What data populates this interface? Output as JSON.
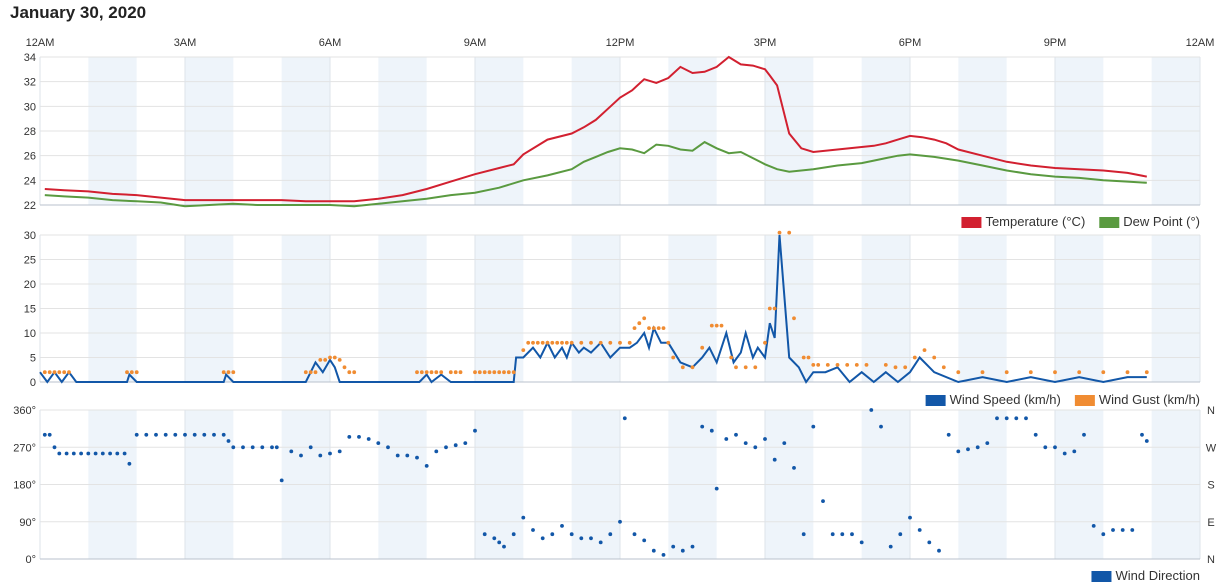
{
  "page_title": "January 30, 2020",
  "x_axis": {
    "labels": [
      "12AM",
      "3AM",
      "6AM",
      "9AM",
      "12PM",
      "3PM",
      "6PM",
      "9PM",
      "12AM"
    ],
    "range_hours": [
      0,
      24
    ]
  },
  "colors": {
    "temperature": "#d22030",
    "dew_point": "#5a9a40",
    "wind_speed": "#1257a8",
    "wind_gust": "#f08c32",
    "wind_direction": "#1257a8",
    "band": "#eef4fa",
    "grid": "#e3e3e3"
  },
  "chart_data": [
    {
      "type": "line",
      "ylim": [
        22,
        34
      ],
      "yticks": [
        22,
        24,
        26,
        28,
        30,
        32,
        34
      ],
      "grid": true,
      "legend_position": "bottom-right",
      "series": [
        {
          "name": "Temperature (°C)",
          "x": [
            0.1,
            0.5,
            1,
            1.5,
            2,
            2.5,
            3,
            3.5,
            4,
            4.5,
            5,
            5.5,
            6,
            6.5,
            7,
            7.5,
            8,
            8.5,
            9,
            9.5,
            9.8,
            10,
            10.5,
            11,
            11.25,
            11.5,
            11.75,
            12,
            12.25,
            12.5,
            12.75,
            13,
            13.25,
            13.5,
            13.75,
            14,
            14.25,
            14.5,
            14.75,
            15,
            15.1,
            15.25,
            15.5,
            15.75,
            16,
            16.5,
            17,
            17.25,
            17.5,
            17.75,
            18,
            18.25,
            18.5,
            18.75,
            19,
            19.5,
            20,
            20.5,
            21,
            21.5,
            22,
            22.5,
            22.9
          ],
          "y": [
            23.3,
            23.2,
            23.1,
            22.9,
            22.8,
            22.6,
            22.4,
            22.4,
            22.4,
            22.4,
            22.4,
            22.3,
            22.3,
            22.3,
            22.5,
            22.8,
            23.3,
            23.9,
            24.5,
            25,
            25.3,
            26.1,
            27.3,
            27.8,
            28.3,
            28.9,
            29.8,
            30.7,
            31.3,
            32.2,
            31.9,
            32.3,
            33.2,
            32.7,
            32.8,
            33.2,
            34,
            33.4,
            33.3,
            33,
            32.5,
            31.7,
            27.8,
            26.6,
            26.3,
            26.5,
            26.7,
            26.8,
            27,
            27.3,
            27.6,
            27.5,
            27.3,
            27,
            26.5,
            26,
            25.5,
            25.2,
            25,
            24.9,
            24.8,
            24.6,
            24.3
          ]
        },
        {
          "name": "Dew Point (°)",
          "x": [
            0.1,
            0.5,
            1,
            1.5,
            2,
            2.5,
            3,
            3.5,
            4,
            4.5,
            5,
            5.5,
            6,
            6.5,
            7,
            7.5,
            8,
            8.5,
            9,
            9.5,
            10,
            10.5,
            11,
            11.25,
            11.5,
            11.75,
            12,
            12.25,
            12.5,
            12.75,
            13,
            13.25,
            13.5,
            13.75,
            14,
            14.25,
            14.5,
            14.75,
            15,
            15.25,
            15.5,
            16,
            16.5,
            17,
            17.25,
            17.5,
            17.75,
            18,
            18.5,
            19,
            19.5,
            20,
            20.5,
            21,
            21.5,
            22,
            22.5,
            22.9
          ],
          "y": [
            22.8,
            22.7,
            22.6,
            22.4,
            22.3,
            22.2,
            21.9,
            22,
            22.1,
            22,
            22,
            22,
            22,
            21.9,
            22.1,
            22.3,
            22.5,
            22.8,
            23,
            23.4,
            24,
            24.4,
            24.9,
            25.5,
            25.9,
            26.3,
            26.6,
            26.5,
            26.2,
            26.9,
            26.8,
            26.5,
            26.4,
            27.1,
            26.6,
            26.2,
            26.3,
            25.8,
            25.3,
            24.9,
            24.7,
            24.9,
            25.2,
            25.4,
            25.6,
            25.8,
            26,
            26.1,
            25.9,
            25.6,
            25.2,
            24.8,
            24.5,
            24.3,
            24.2,
            24,
            23.9,
            23.8
          ]
        }
      ]
    },
    {
      "type": "line",
      "ylim": [
        0,
        30
      ],
      "yticks": [
        0,
        5,
        10,
        15,
        20,
        25,
        30
      ],
      "grid": true,
      "legend_position": "bottom-right",
      "series": [
        {
          "name": "Wind Speed (km/h)",
          "x": [
            0,
            0.15,
            0.3,
            0.45,
            0.6,
            0.75,
            1,
            1.5,
            1.8,
            1.85,
            2,
            2.5,
            3,
            3.5,
            3.8,
            3.85,
            4,
            4.5,
            5,
            5.5,
            5.7,
            5.85,
            6,
            6.1,
            6.2,
            6.35,
            6.5,
            6.7,
            7,
            7.5,
            7.85,
            8,
            8.1,
            8.3,
            8.5,
            9,
            9.5,
            9.8,
            9.85,
            10,
            10.2,
            10.35,
            10.5,
            10.65,
            10.8,
            10.9,
            11,
            11.15,
            11.25,
            11.4,
            11.6,
            11.8,
            12,
            12.2,
            12.35,
            12.5,
            12.6,
            12.7,
            12.85,
            13,
            13.25,
            13.5,
            13.7,
            13.85,
            14,
            14.2,
            14.35,
            14.5,
            14.6,
            14.75,
            14.85,
            15,
            15.1,
            15.2,
            15.3,
            15.5,
            15.7,
            15.85,
            16,
            16.25,
            16.5,
            16.75,
            17,
            17.25,
            17.5,
            17.75,
            18,
            18.2,
            18.5,
            19,
            19.5,
            20,
            20.5,
            21,
            21.5,
            22,
            22.5,
            22.9
          ],
          "y": [
            2,
            0,
            2,
            0,
            2,
            0,
            0,
            0,
            0,
            1.5,
            0,
            0,
            0,
            0,
            0,
            1.5,
            0,
            0,
            0,
            0,
            4,
            2,
            4.5,
            3,
            0,
            0,
            0,
            0,
            0,
            0,
            0,
            1.5,
            0,
            1.5,
            0,
            0,
            0,
            0,
            5,
            5,
            7,
            5,
            8,
            5,
            7,
            5,
            8,
            6,
            7,
            6,
            8,
            5,
            7,
            7,
            8,
            10,
            7,
            11,
            8,
            8,
            4,
            3,
            5,
            7,
            4,
            10,
            4,
            6,
            10,
            5,
            7,
            5,
            12,
            9,
            30,
            5,
            3,
            0,
            2,
            2,
            3,
            0,
            2,
            0,
            2,
            0,
            2,
            5,
            2,
            0,
            1,
            0,
            1,
            0,
            1,
            0,
            1,
            1
          ]
        },
        {
          "name": "Wind Gust (km/h)",
          "x": [
            0.1,
            0.2,
            0.3,
            0.4,
            0.5,
            0.6,
            1.8,
            1.9,
            2,
            3.8,
            3.9,
            4,
            5.5,
            5.6,
            5.7,
            5.8,
            5.9,
            6,
            6.1,
            6.2,
            6.3,
            6.4,
            6.5,
            7.8,
            7.9,
            8,
            8.1,
            8.2,
            8.3,
            8.5,
            8.6,
            8.7,
            9,
            9.1,
            9.2,
            9.3,
            9.4,
            9.5,
            9.6,
            9.7,
            9.8,
            10,
            10.1,
            10.2,
            10.3,
            10.4,
            10.5,
            10.6,
            10.7,
            10.8,
            10.9,
            11,
            11.2,
            11.4,
            11.6,
            11.8,
            12,
            12.2,
            12.3,
            12.4,
            12.5,
            12.6,
            12.7,
            12.8,
            12.9,
            13,
            13.1,
            13.3,
            13.5,
            13.7,
            13.9,
            14,
            14.1,
            14.3,
            14.4,
            14.6,
            14.8,
            15,
            15.1,
            15.2,
            15.3,
            15.5,
            15.6,
            15.8,
            15.9,
            16,
            16.1,
            16.3,
            16.5,
            16.7,
            16.9,
            17.1,
            17.5,
            17.7,
            17.9,
            18.1,
            18.3,
            18.5,
            18.7,
            19,
            19.5,
            20,
            20.5,
            21,
            21.5,
            22,
            22.5,
            22.9
          ],
          "y": [
            2,
            2,
            2,
            2,
            2,
            2,
            2,
            2,
            2,
            2,
            2,
            2,
            2,
            2,
            2,
            4.5,
            4.5,
            5,
            5,
            4.5,
            3,
            2,
            2,
            2,
            2,
            2,
            2,
            2,
            2,
            2,
            2,
            2,
            2,
            2,
            2,
            2,
            2,
            2,
            2,
            2,
            2,
            6.5,
            8,
            8,
            8,
            8,
            8,
            8,
            8,
            8,
            8,
            8,
            8,
            8,
            8,
            8,
            8,
            8,
            11,
            12,
            13,
            11,
            11,
            11,
            11,
            8,
            5,
            3,
            3,
            7,
            11.5,
            11.5,
            11.5,
            5,
            3,
            3,
            3,
            8,
            15,
            15,
            30.5,
            30.5,
            13,
            5,
            5,
            3.5,
            3.5,
            3.5,
            3.5,
            3.5,
            3.5,
            3.5,
            3.5,
            3,
            3,
            5,
            6.5,
            5,
            3,
            2,
            2,
            2,
            2,
            2,
            2,
            2,
            2,
            2
          ]
        }
      ]
    },
    {
      "type": "scatter",
      "ylim": [
        0,
        360
      ],
      "yticks": [
        0,
        90,
        180,
        270,
        360
      ],
      "ytick_labels": [
        "0°",
        "90°",
        "180°",
        "270°",
        "360°"
      ],
      "right_labels": [
        "N",
        "E",
        "S",
        "W",
        "N"
      ],
      "grid": true,
      "legend_position": "bottom-right",
      "series": [
        {
          "name": "Wind Direction",
          "x": [
            0.1,
            0.2,
            0.3,
            0.4,
            0.55,
            0.7,
            0.85,
            1,
            1.15,
            1.3,
            1.45,
            1.6,
            1.75,
            1.85,
            2,
            2.2,
            2.4,
            2.6,
            2.8,
            3,
            3.2,
            3.4,
            3.6,
            3.8,
            3.9,
            4,
            4.2,
            4.4,
            4.6,
            4.8,
            4.9,
            5,
            5.2,
            5.4,
            5.6,
            5.8,
            6,
            6.2,
            6.4,
            6.6,
            6.8,
            7,
            7.2,
            7.4,
            7.6,
            7.8,
            8,
            8.2,
            8.4,
            8.6,
            8.8,
            9,
            9.2,
            9.4,
            9.5,
            9.6,
            9.8,
            10,
            10.2,
            10.4,
            10.6,
            10.8,
            11,
            11.2,
            11.4,
            11.6,
            11.8,
            12,
            12.1,
            12.3,
            12.5,
            12.7,
            12.9,
            13.1,
            13.3,
            13.5,
            13.7,
            13.9,
            14,
            14.2,
            14.4,
            14.6,
            14.8,
            15,
            15.2,
            15.4,
            15.6,
            15.8,
            16,
            16.2,
            16.4,
            16.6,
            16.8,
            17,
            17.2,
            17.4,
            17.6,
            17.8,
            18,
            18.2,
            18.4,
            18.6,
            18.8,
            19,
            19.2,
            19.4,
            19.6,
            19.8,
            20,
            20.2,
            20.4,
            20.6,
            20.8,
            21,
            21.2,
            21.4,
            21.6,
            21.8,
            22,
            22.2,
            22.4,
            22.6,
            22.8,
            22.9
          ],
          "y": [
            300,
            300,
            270,
            255,
            255,
            255,
            255,
            255,
            255,
            255,
            255,
            255,
            255,
            230,
            300,
            300,
            300,
            300,
            300,
            300,
            300,
            300,
            300,
            300,
            285,
            270,
            270,
            270,
            270,
            270,
            270,
            190,
            260,
            250,
            270,
            250,
            255,
            260,
            295,
            295,
            290,
            280,
            270,
            250,
            250,
            245,
            225,
            260,
            270,
            275,
            280,
            310,
            60,
            50,
            40,
            30,
            60,
            100,
            70,
            50,
            60,
            80,
            60,
            50,
            50,
            40,
            60,
            90,
            340,
            60,
            45,
            20,
            10,
            30,
            20,
            30,
            320,
            310,
            170,
            290,
            300,
            280,
            270,
            290,
            240,
            280,
            220,
            60,
            320,
            140,
            60,
            60,
            60,
            40,
            360,
            320,
            30,
            60,
            100,
            70,
            40,
            20,
            300,
            260,
            265,
            270,
            280,
            340,
            340,
            340,
            340,
            300,
            270,
            270,
            255,
            260,
            300,
            80,
            60,
            70,
            70,
            70,
            300,
            285
          ]
        }
      ]
    }
  ],
  "legends": [
    [
      {
        "label": "Temperature (°C)",
        "color": "#d22030"
      },
      {
        "label": "Dew Point (°)",
        "color": "#5a9a40"
      }
    ],
    [
      {
        "label": "Wind Speed (km/h)",
        "color": "#1257a8"
      },
      {
        "label": "Wind Gust (km/h)",
        "color": "#f08c32"
      }
    ],
    [
      {
        "label": "Wind Direction",
        "color": "#1257a8"
      }
    ]
  ]
}
